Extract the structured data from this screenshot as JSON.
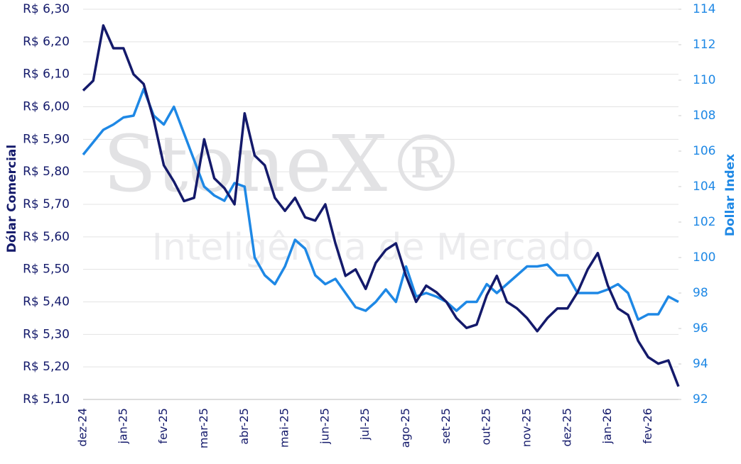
{
  "chart_data": {
    "type": "line",
    "annotations": [
      "StoneX®",
      "Inteligência de Mercado"
    ],
    "ylabel": "Dólar Comercial",
    "y2label": "Dollar Index",
    "categories": [
      "dez-24",
      null,
      null,
      null,
      "jan-25",
      null,
      null,
      null,
      "fev-25",
      null,
      null,
      null,
      "mar-25",
      null,
      null,
      null,
      "abr-25",
      null,
      null,
      null,
      "mai-25",
      null,
      null,
      null,
      "jun-25",
      null,
      null,
      null,
      "jul-25",
      null,
      null,
      null,
      "ago-25",
      null,
      null,
      null,
      "set-25",
      null,
      null,
      null,
      "out-25",
      null,
      null,
      null,
      "nov-25",
      null,
      null,
      null,
      "dez-25",
      null,
      null,
      null,
      "jan-26",
      null,
      null,
      null,
      "fev-26",
      null,
      null,
      null
    ],
    "series": [
      {
        "name": "Dólar Comercial",
        "color": "#141a6b",
        "axis": "y",
        "values": [
          6.05,
          6.08,
          6.25,
          6.18,
          6.18,
          6.1,
          6.07,
          5.96,
          5.82,
          5.77,
          5.71,
          5.72,
          5.9,
          5.78,
          5.75,
          5.7,
          5.98,
          5.85,
          5.82,
          5.72,
          5.68,
          5.72,
          5.66,
          5.65,
          5.7,
          5.58,
          5.48,
          5.5,
          5.44,
          5.52,
          5.56,
          5.58,
          5.48,
          5.4,
          5.45,
          5.43,
          5.4,
          5.35,
          5.32,
          5.33,
          5.42,
          5.48,
          5.4,
          5.38,
          5.35,
          5.31,
          5.35,
          5.38,
          5.38,
          5.43,
          5.5,
          5.55,
          5.45,
          5.38,
          5.36,
          5.28,
          5.23,
          5.21,
          5.22,
          5.14
        ]
      },
      {
        "name": "Dollar Index",
        "color": "#1e88e5",
        "axis": "y2",
        "values": [
          105.8,
          106.5,
          107.2,
          107.5,
          107.9,
          108.0,
          109.5,
          108.0,
          107.5,
          108.5,
          107.0,
          105.5,
          104.0,
          103.5,
          103.2,
          104.2,
          104.0,
          100.0,
          99.0,
          98.5,
          99.5,
          101.0,
          100.5,
          99.0,
          98.5,
          98.8,
          98.0,
          97.2,
          97.0,
          97.5,
          98.2,
          97.5,
          99.5,
          97.8,
          98.0,
          97.8,
          97.5,
          97.0,
          97.5,
          97.5,
          98.5,
          98.0,
          98.5,
          99.0,
          99.5,
          99.5,
          99.6,
          99.0,
          99.0,
          98.0,
          98.0,
          98.0,
          98.2,
          98.5,
          98.0,
          96.5,
          96.8,
          96.8,
          97.8,
          97.5
        ]
      }
    ],
    "ylim": [
      5.1,
      6.3
    ],
    "yticks": [
      {
        "value": 5.1,
        "label": "R$ 5,10"
      },
      {
        "value": 5.2,
        "label": "R$ 5,20"
      },
      {
        "value": 5.3,
        "label": "R$ 5,30"
      },
      {
        "value": 5.4,
        "label": "R$ 5,40"
      },
      {
        "value": 5.5,
        "label": "R$ 5,50"
      },
      {
        "value": 5.6,
        "label": "R$ 5,60"
      },
      {
        "value": 5.7,
        "label": "R$ 5,70"
      },
      {
        "value": 5.8,
        "label": "R$ 5,80"
      },
      {
        "value": 5.9,
        "label": "R$ 5,90"
      },
      {
        "value": 6.0,
        "label": "R$ 6,00"
      },
      {
        "value": 6.1,
        "label": "R$ 6,10"
      },
      {
        "value": 6.2,
        "label": "R$ 6,20"
      },
      {
        "value": 6.3,
        "label": "R$ 6,30"
      }
    ],
    "y2lim": [
      92,
      114
    ],
    "y2ticks": [
      92,
      94,
      96,
      98,
      100,
      102,
      104,
      106,
      108,
      110,
      112,
      114
    ],
    "grid": true
  }
}
